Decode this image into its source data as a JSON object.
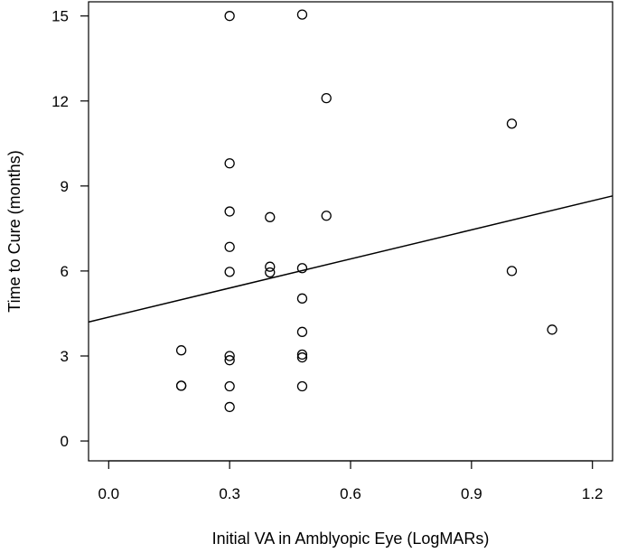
{
  "chart_data": {
    "type": "scatter",
    "title": "",
    "xlabel": "Initial VA in Amblyopic Eye (LogMARs)",
    "ylabel": "Time to Cure (months)",
    "xlim": [
      -0.05,
      1.25
    ],
    "ylim": [
      -0.7,
      15.5
    ],
    "x_ticks": [
      "0.0",
      "0.3",
      "0.6",
      "0.9",
      "1.2"
    ],
    "x_tick_values": [
      0.0,
      0.3,
      0.6,
      0.9,
      1.2
    ],
    "y_ticks": [
      "0",
      "3",
      "6",
      "9",
      "12",
      "15"
    ],
    "y_tick_values": [
      0,
      3,
      6,
      9,
      12,
      15
    ],
    "grid": false,
    "legend": "none",
    "points": [
      {
        "x": 0.18,
        "y": 3.2
      },
      {
        "x": 0.18,
        "y": 1.95
      },
      {
        "x": 0.18,
        "y": 1.95
      },
      {
        "x": 0.3,
        "y": 15.0
      },
      {
        "x": 0.3,
        "y": 9.8
      },
      {
        "x": 0.3,
        "y": 8.1
      },
      {
        "x": 0.3,
        "y": 6.85
      },
      {
        "x": 0.3,
        "y": 5.97
      },
      {
        "x": 0.3,
        "y": 3.0
      },
      {
        "x": 0.3,
        "y": 2.85
      },
      {
        "x": 0.3,
        "y": 1.93
      },
      {
        "x": 0.3,
        "y": 1.2
      },
      {
        "x": 0.4,
        "y": 7.9
      },
      {
        "x": 0.4,
        "y": 6.15
      },
      {
        "x": 0.4,
        "y": 5.95
      },
      {
        "x": 0.48,
        "y": 15.05
      },
      {
        "x": 0.48,
        "y": 6.1
      },
      {
        "x": 0.48,
        "y": 5.03
      },
      {
        "x": 0.48,
        "y": 3.85
      },
      {
        "x": 0.48,
        "y": 3.05
      },
      {
        "x": 0.48,
        "y": 2.95
      },
      {
        "x": 0.48,
        "y": 1.93
      },
      {
        "x": 0.54,
        "y": 12.1
      },
      {
        "x": 0.54,
        "y": 7.95
      },
      {
        "x": 1.0,
        "y": 11.2
      },
      {
        "x": 1.0,
        "y": 6.0
      },
      {
        "x": 1.1,
        "y": 3.93
      }
    ],
    "regression_line": {
      "x": [
        -0.05,
        1.25
      ],
      "y": [
        4.2,
        8.65
      ]
    },
    "colors": {
      "marker": "#000000",
      "line": "#000000",
      "background": "#ffffff"
    }
  }
}
